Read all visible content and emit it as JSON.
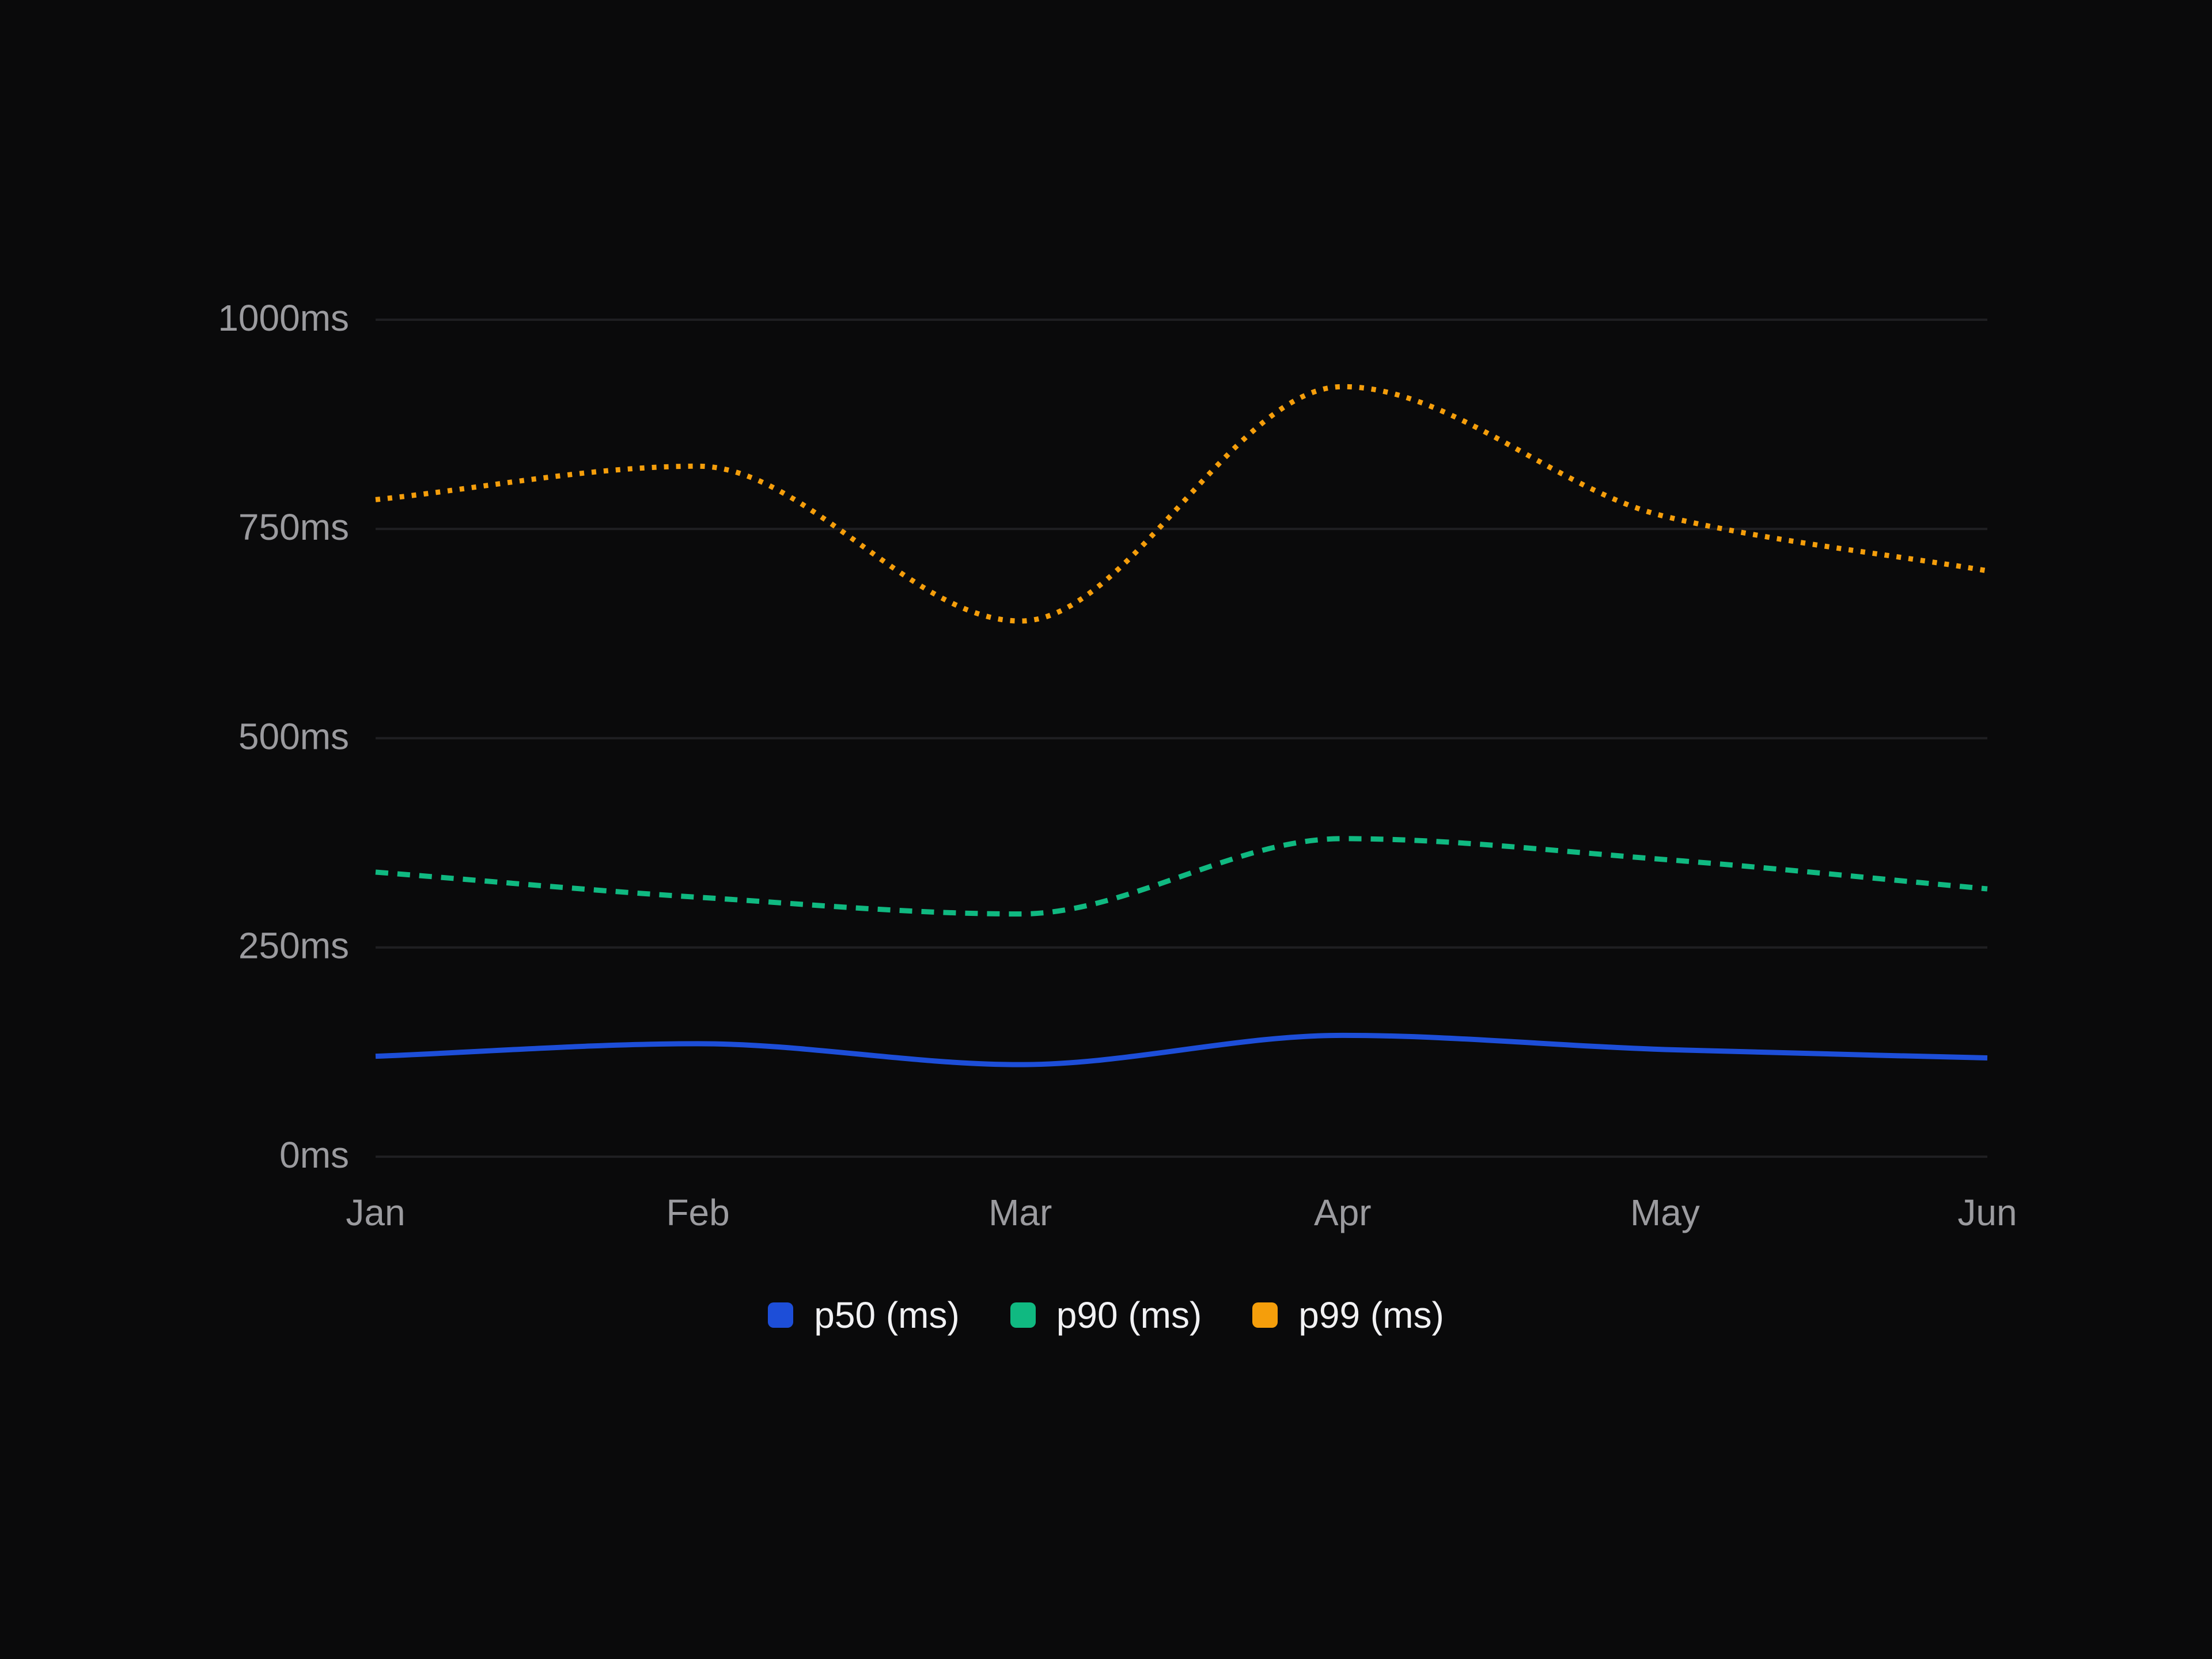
{
  "chart_data": {
    "type": "line",
    "categories": [
      "Jan",
      "Feb",
      "Mar",
      "Apr",
      "May",
      "Jun"
    ],
    "series": [
      {
        "name": "p50 (ms)",
        "color": "#1d4ed8",
        "line_style": "solid",
        "values": [
          120,
          135,
          110,
          145,
          128,
          118
        ]
      },
      {
        "name": "p90 (ms)",
        "color": "#10b981",
        "line_style": "dashed",
        "values": [
          340,
          310,
          290,
          380,
          355,
          320
        ]
      },
      {
        "name": "p99 (ms)",
        "color": "#f59e0b",
        "line_style": "dotted",
        "values": [
          785,
          825,
          640,
          920,
          765,
          700
        ]
      }
    ],
    "y_ticks": [
      "0ms",
      "250ms",
      "500ms",
      "750ms",
      "1000ms"
    ],
    "y_tick_values": [
      0,
      250,
      500,
      750,
      1000
    ],
    "ylim": [
      0,
      1000
    ],
    "grid": "horizontal",
    "legend_position": "bottom-center",
    "title": "",
    "xlabel": "",
    "ylabel": ""
  }
}
